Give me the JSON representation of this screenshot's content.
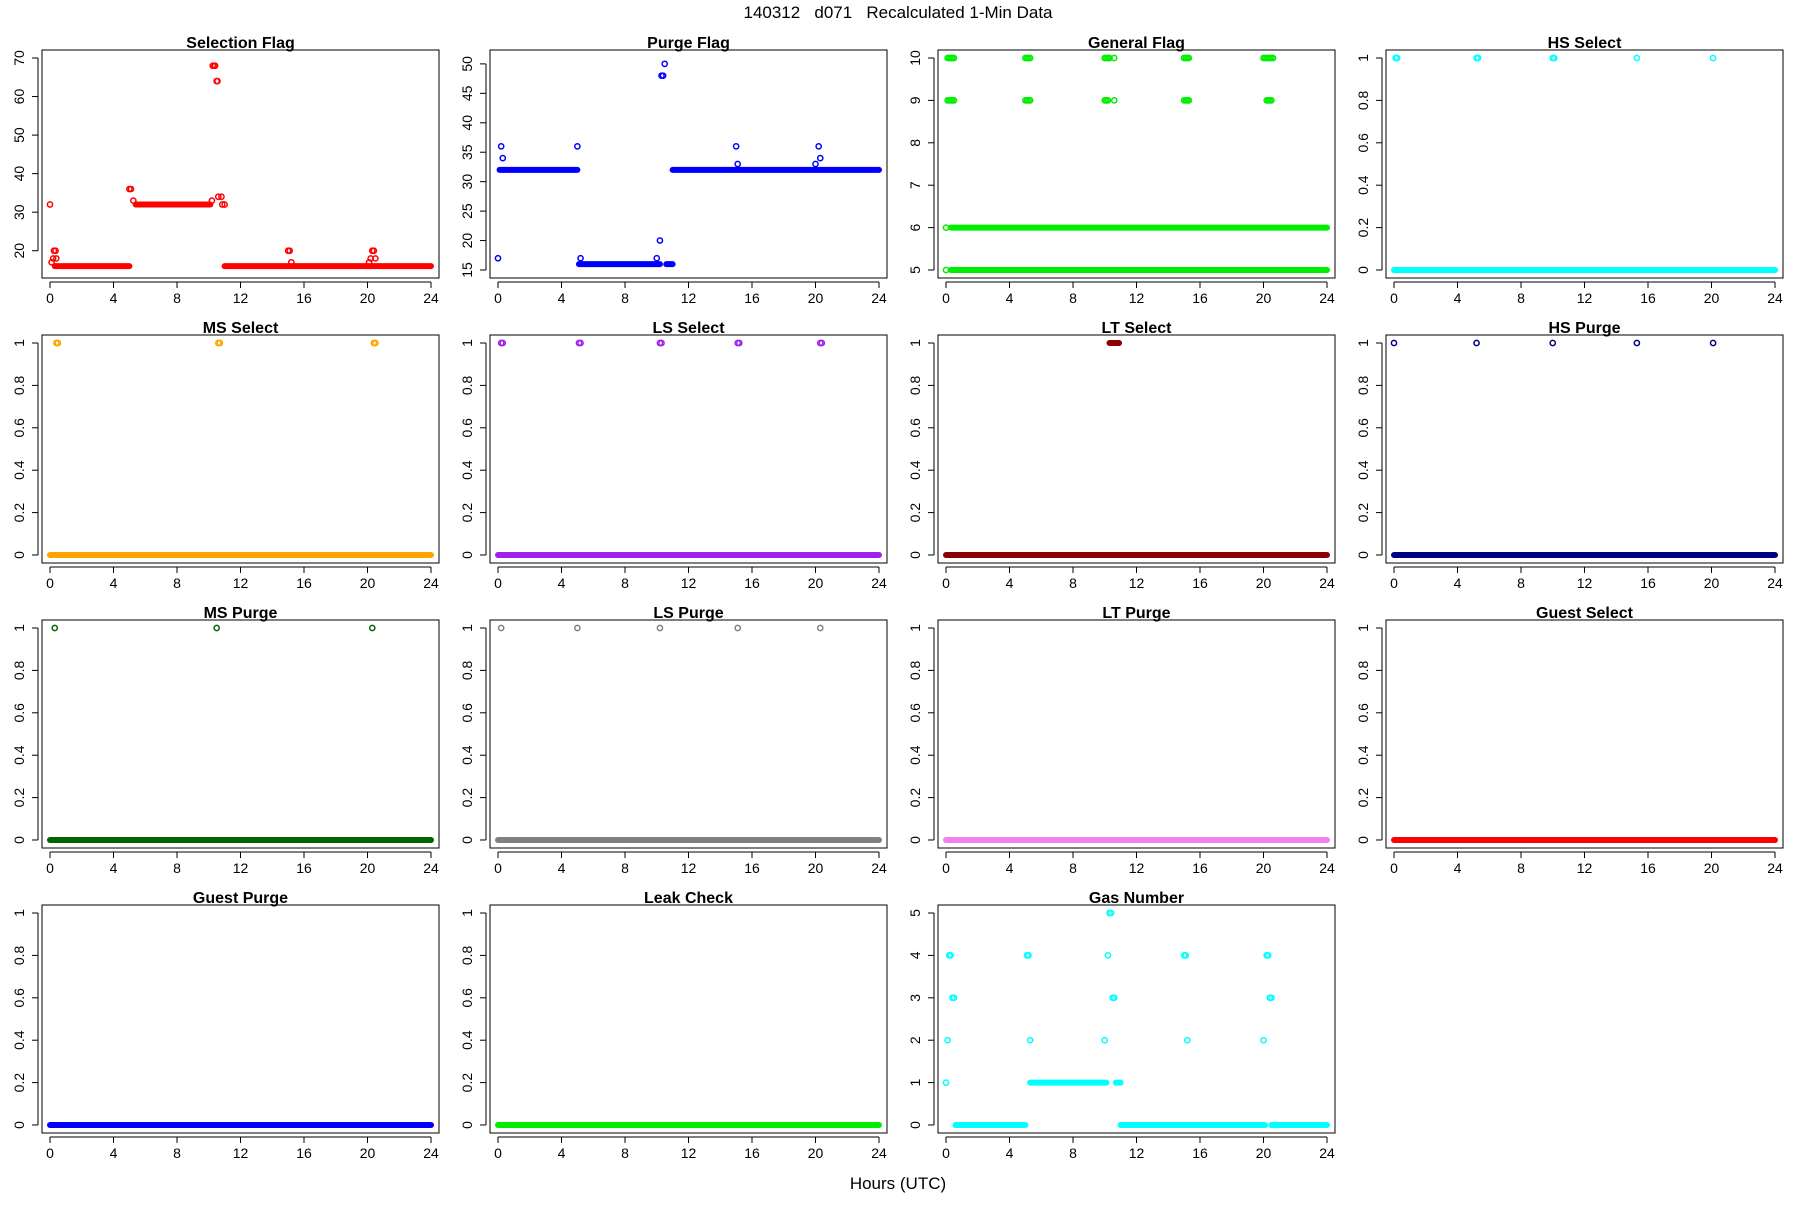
{
  "figure": {
    "title": "140312   d071   Recalculated 1-Min Data",
    "xlabel": "Hours (UTC)"
  },
  "chart_data": [
    {
      "type": "scatter",
      "title": "Selection Flag",
      "color": "#ff0000",
      "xlim": [
        0,
        24
      ],
      "ylim": [
        15,
        70
      ],
      "xticks": [
        0,
        4,
        8,
        12,
        16,
        20,
        24
      ],
      "yticks": [
        20,
        30,
        40,
        50,
        60,
        70
      ],
      "series": [
        {
          "kind": "segment",
          "y": 16,
          "x0": 0.3,
          "x1": 5.0
        },
        {
          "kind": "segment",
          "y": 32,
          "x0": 5.4,
          "x1": 10.1
        },
        {
          "kind": "segment",
          "y": 16,
          "x0": 11.0,
          "x1": 24.0
        },
        {
          "kind": "points",
          "x": [
            0.0,
            0.1,
            0.2,
            0.25,
            0.35,
            0.4,
            5.0,
            5.1,
            5.25,
            10.2,
            10.25,
            10.35,
            10.4,
            10.5,
            10.55,
            10.6,
            10.8,
            10.85,
            11.0,
            15.0,
            15.1,
            15.2,
            20.1,
            20.2,
            20.3,
            20.4,
            20.5
          ],
          "y": [
            32,
            17,
            18,
            20,
            20,
            18,
            36,
            36,
            33,
            33,
            68,
            68,
            68,
            64,
            64,
            34,
            34,
            32,
            32,
            20,
            20,
            17,
            17,
            18,
            20,
            20,
            18
          ]
        }
      ]
    },
    {
      "type": "scatter",
      "title": "Purge Flag",
      "color": "#0000ff",
      "xlim": [
        0,
        24
      ],
      "ylim": [
        15,
        51
      ],
      "xticks": [
        0,
        4,
        8,
        12,
        16,
        20,
        24
      ],
      "yticks": [
        15,
        20,
        25,
        30,
        35,
        40,
        45,
        50
      ],
      "series": [
        {
          "kind": "segment",
          "y": 32,
          "x0": 0.1,
          "x1": 5.0
        },
        {
          "kind": "segment",
          "y": 16,
          "x0": 5.1,
          "x1": 10.2
        },
        {
          "kind": "segment",
          "y": 16,
          "x0": 10.6,
          "x1": 11.0
        },
        {
          "kind": "segment",
          "y": 32,
          "x0": 11.0,
          "x1": 24.0
        },
        {
          "kind": "points",
          "x": [
            0.0,
            0.2,
            0.3,
            5.0,
            5.2,
            10.0,
            10.2,
            10.3,
            10.4,
            10.5,
            15.0,
            15.1,
            20.0,
            20.2,
            20.3
          ],
          "y": [
            17,
            36,
            34,
            36,
            17,
            17,
            20,
            48,
            48,
            50,
            36,
            33,
            33,
            36,
            34
          ]
        }
      ]
    },
    {
      "type": "scatter",
      "title": "General Flag",
      "color": "#00ee00",
      "xlim": [
        0,
        24
      ],
      "ylim": [
        5,
        10
      ],
      "xticks": [
        0,
        4,
        8,
        12,
        16,
        20,
        24
      ],
      "yticks": [
        5,
        6,
        7,
        8,
        9,
        10
      ],
      "series": [
        {
          "kind": "segment",
          "y": 5,
          "x0": 0.3,
          "x1": 24.0
        },
        {
          "kind": "segment",
          "y": 6,
          "x0": 0.3,
          "x1": 24.0
        },
        {
          "kind": "points",
          "x": [
            0.0,
            0.0,
            0.1,
            0.2,
            0.3,
            0.4,
            0.5,
            0.1,
            0.2,
            0.3,
            0.4,
            0.5,
            5.0,
            5.1,
            5.2,
            5.3,
            5.0,
            5.1,
            5.2,
            5.3,
            10.0,
            10.1,
            10.2,
            10.3,
            10.0,
            10.1,
            10.2,
            10.6,
            10.6,
            15.0,
            15.1,
            15.2,
            15.3,
            15.0,
            15.1,
            15.2,
            15.3,
            20.0,
            20.1,
            20.2,
            20.3,
            20.4,
            20.5,
            20.6,
            20.2,
            20.3,
            20.4,
            20.5
          ],
          "y": [
            6,
            5,
            10,
            10,
            10,
            10,
            10,
            9,
            9,
            9,
            9,
            9,
            10,
            10,
            10,
            10,
            9,
            9,
            9,
            9,
            10,
            10,
            10,
            10,
            9,
            9,
            9,
            10,
            9,
            10,
            10,
            10,
            10,
            9,
            9,
            9,
            9,
            10,
            10,
            10,
            10,
            10,
            10,
            10,
            9,
            9,
            9,
            9
          ]
        }
      ]
    },
    {
      "type": "scatter",
      "title": "HS Select",
      "color": "#00ffff",
      "xlim": [
        0,
        24
      ],
      "ylim": [
        0,
        1
      ],
      "xticks": [
        0,
        4,
        8,
        12,
        16,
        20,
        24
      ],
      "yticks": [
        0,
        0.2,
        0.4,
        0.6,
        0.8,
        1
      ],
      "series": [
        {
          "kind": "segment",
          "y": 0,
          "x0": 0.0,
          "x1": 24.0
        },
        {
          "kind": "points",
          "x": [
            0.1,
            0.2,
            5.2,
            5.3,
            10.0,
            10.1,
            15.3,
            20.1
          ],
          "y": [
            1,
            1,
            1,
            1,
            1,
            1,
            1,
            1
          ]
        }
      ]
    },
    {
      "type": "scatter",
      "title": "MS Select",
      "color": "#ffa500",
      "xlim": [
        0,
        24
      ],
      "ylim": [
        0,
        1
      ],
      "xticks": [
        0,
        4,
        8,
        12,
        16,
        20,
        24
      ],
      "yticks": [
        0,
        0.2,
        0.4,
        0.6,
        0.8,
        1
      ],
      "series": [
        {
          "kind": "segment",
          "y": 0,
          "x0": 0.0,
          "x1": 24.0
        },
        {
          "kind": "points",
          "x": [
            0.4,
            0.5,
            10.6,
            10.7,
            20.4,
            20.5
          ],
          "y": [
            1,
            1,
            1,
            1,
            1,
            1
          ]
        }
      ]
    },
    {
      "type": "scatter",
      "title": "LS Select",
      "color": "#a020f0",
      "xlim": [
        0,
        24
      ],
      "ylim": [
        0,
        1
      ],
      "xticks": [
        0,
        4,
        8,
        12,
        16,
        20,
        24
      ],
      "yticks": [
        0,
        0.2,
        0.4,
        0.6,
        0.8,
        1
      ],
      "series": [
        {
          "kind": "segment",
          "y": 0,
          "x0": 0.0,
          "x1": 24.0
        },
        {
          "kind": "points",
          "x": [
            0.2,
            0.3,
            5.1,
            5.2,
            10.2,
            10.3,
            15.1,
            15.2,
            20.3,
            20.4
          ],
          "y": [
            1,
            1,
            1,
            1,
            1,
            1,
            1,
            1,
            1,
            1
          ]
        }
      ]
    },
    {
      "type": "scatter",
      "title": "LT Select",
      "color": "#8b0000",
      "xlim": [
        0,
        24
      ],
      "ylim": [
        0,
        1
      ],
      "xticks": [
        0,
        4,
        8,
        12,
        16,
        20,
        24
      ],
      "yticks": [
        0,
        0.2,
        0.4,
        0.6,
        0.8,
        1
      ],
      "series": [
        {
          "kind": "segment",
          "y": 0,
          "x0": 0.0,
          "x1": 24.0
        },
        {
          "kind": "segment",
          "y": 1,
          "x0": 10.3,
          "x1": 10.9
        }
      ]
    },
    {
      "type": "scatter",
      "title": "HS Purge",
      "color": "#000080",
      "xlim": [
        0,
        24
      ],
      "ylim": [
        0,
        1
      ],
      "xticks": [
        0,
        4,
        8,
        12,
        16,
        20,
        24
      ],
      "yticks": [
        0,
        0.2,
        0.4,
        0.6,
        0.8,
        1
      ],
      "series": [
        {
          "kind": "segment",
          "y": 0,
          "x0": 0.0,
          "x1": 24.0
        },
        {
          "kind": "points",
          "x": [
            0.0,
            5.2,
            10.0,
            15.3,
            20.1
          ],
          "y": [
            1,
            1,
            1,
            1,
            1
          ]
        }
      ]
    },
    {
      "type": "scatter",
      "title": "MS Purge",
      "color": "#006400",
      "xlim": [
        0,
        24
      ],
      "ylim": [
        0,
        1
      ],
      "xticks": [
        0,
        4,
        8,
        12,
        16,
        20,
        24
      ],
      "yticks": [
        0,
        0.2,
        0.4,
        0.6,
        0.8,
        1
      ],
      "series": [
        {
          "kind": "segment",
          "y": 0,
          "x0": 0.0,
          "x1": 24.0
        },
        {
          "kind": "points",
          "x": [
            0.3,
            10.5,
            20.3
          ],
          "y": [
            1,
            1,
            1
          ]
        }
      ]
    },
    {
      "type": "scatter",
      "title": "LS Purge",
      "color": "#808080",
      "xlim": [
        0,
        24
      ],
      "ylim": [
        0,
        1
      ],
      "xticks": [
        0,
        4,
        8,
        12,
        16,
        20,
        24
      ],
      "yticks": [
        0,
        0.2,
        0.4,
        0.6,
        0.8,
        1
      ],
      "series": [
        {
          "kind": "segment",
          "y": 0,
          "x0": 0.0,
          "x1": 24.0
        },
        {
          "kind": "points",
          "x": [
            0.2,
            5.0,
            10.2,
            15.1,
            20.3
          ],
          "y": [
            1,
            1,
            1,
            1,
            1
          ]
        }
      ]
    },
    {
      "type": "scatter",
      "title": "LT Purge",
      "color": "#ee82ee",
      "xlim": [
        0,
        24
      ],
      "ylim": [
        0,
        1
      ],
      "xticks": [
        0,
        4,
        8,
        12,
        16,
        20,
        24
      ],
      "yticks": [
        0,
        0.2,
        0.4,
        0.6,
        0.8,
        1
      ],
      "series": [
        {
          "kind": "segment",
          "y": 0,
          "x0": 0.0,
          "x1": 24.0
        }
      ]
    },
    {
      "type": "scatter",
      "title": "Guest Select",
      "color": "#ff0000",
      "xlim": [
        0,
        24
      ],
      "ylim": [
        0,
        1
      ],
      "xticks": [
        0,
        4,
        8,
        12,
        16,
        20,
        24
      ],
      "yticks": [
        0,
        0.2,
        0.4,
        0.6,
        0.8,
        1
      ],
      "series": [
        {
          "kind": "segment",
          "y": 0,
          "x0": 0.0,
          "x1": 24.0
        }
      ]
    },
    {
      "type": "scatter",
      "title": "Guest Purge",
      "color": "#0000ff",
      "xlim": [
        0,
        24
      ],
      "ylim": [
        0,
        1
      ],
      "xticks": [
        0,
        4,
        8,
        12,
        16,
        20,
        24
      ],
      "yticks": [
        0,
        0.2,
        0.4,
        0.6,
        0.8,
        1
      ],
      "series": [
        {
          "kind": "segment",
          "y": 0,
          "x0": 0.0,
          "x1": 24.0
        }
      ]
    },
    {
      "type": "scatter",
      "title": "Leak Check",
      "color": "#00ee00",
      "xlim": [
        0,
        24
      ],
      "ylim": [
        0,
        1
      ],
      "xticks": [
        0,
        4,
        8,
        12,
        16,
        20,
        24
      ],
      "yticks": [
        0,
        0.2,
        0.4,
        0.6,
        0.8,
        1
      ],
      "series": [
        {
          "kind": "segment",
          "y": 0,
          "x0": 0.0,
          "x1": 24.0
        }
      ]
    },
    {
      "type": "scatter",
      "title": "Gas Number",
      "color": "#00ffff",
      "xlim": [
        0,
        24
      ],
      "ylim": [
        0,
        5
      ],
      "xticks": [
        0,
        4,
        8,
        12,
        16,
        20,
        24
      ],
      "yticks": [
        0,
        1,
        2,
        3,
        4,
        5
      ],
      "series": [
        {
          "kind": "segment",
          "y": 0,
          "x0": 0.6,
          "x1": 5.0
        },
        {
          "kind": "segment",
          "y": 1,
          "x0": 5.3,
          "x1": 10.1
        },
        {
          "kind": "segment",
          "y": 1,
          "x0": 10.7,
          "x1": 11.0
        },
        {
          "kind": "segment",
          "y": 0,
          "x0": 11.0,
          "x1": 20.1
        },
        {
          "kind": "segment",
          "y": 0,
          "x0": 20.5,
          "x1": 24.0
        },
        {
          "kind": "points",
          "x": [
            0.0,
            0.1,
            0.2,
            0.3,
            0.4,
            0.5,
            5.1,
            5.2,
            5.3,
            10.0,
            10.2,
            10.3,
            10.4,
            10.5,
            10.6,
            15.0,
            15.1,
            15.2,
            20.0,
            20.2,
            20.3,
            20.4,
            20.5
          ],
          "y": [
            1,
            2,
            4,
            4,
            3,
            3,
            4,
            4,
            2,
            2,
            4,
            5,
            5,
            3,
            3,
            4,
            4,
            2,
            2,
            4,
            4,
            3,
            3
          ]
        }
      ]
    }
  ]
}
